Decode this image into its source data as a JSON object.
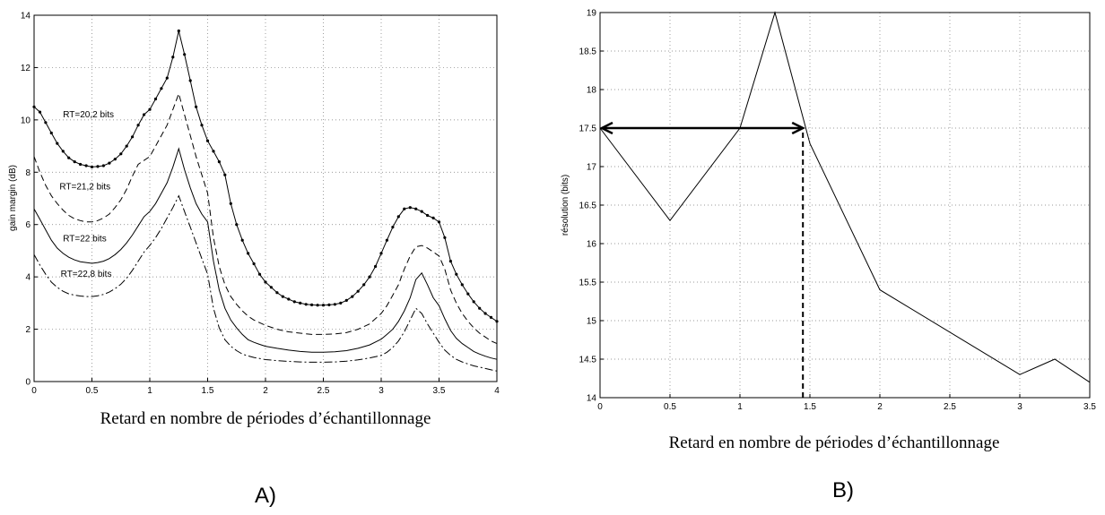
{
  "chart_data": [
    {
      "panel_label": "A)",
      "type": "line",
      "xlabel": "Retard en nombre de périodes d’échantillonnage",
      "ylabel": "gain margin (dB)",
      "xlim": [
        0,
        4
      ],
      "ylim": [
        0,
        14
      ],
      "xticks": [
        "0",
        "0.5",
        "1",
        "1.5",
        "2",
        "2.5",
        "3",
        "3.5",
        "4"
      ],
      "yticks": [
        "0",
        "2",
        "4",
        "6",
        "8",
        "10",
        "12",
        "14"
      ],
      "grid": true,
      "annotations": [
        {
          "text": "RT=20,2 bits",
          "x": 0.25,
          "y": 10.1
        },
        {
          "text": "RT=21,2 bits",
          "x": 0.22,
          "y": 7.35
        },
        {
          "text": "RT=22 bits",
          "x": 0.25,
          "y": 5.35
        },
        {
          "text": "RT=22,8 bits",
          "x": 0.23,
          "y": 4.0
        }
      ],
      "series": [
        {
          "name": "RT=20,2 bits",
          "style": "solid-dotted",
          "x": [
            0,
            0.05,
            0.1,
            0.15,
            0.2,
            0.25,
            0.3,
            0.35,
            0.4,
            0.45,
            0.5,
            0.55,
            0.6,
            0.65,
            0.7,
            0.75,
            0.8,
            0.85,
            0.9,
            0.95,
            1.0,
            1.05,
            1.1,
            1.15,
            1.2,
            1.25,
            1.3,
            1.35,
            1.4,
            1.45,
            1.5,
            1.55,
            1.6,
            1.65,
            1.7,
            1.75,
            1.8,
            1.85,
            1.9,
            1.95,
            2.0,
            2.05,
            2.1,
            2.15,
            2.2,
            2.25,
            2.3,
            2.35,
            2.4,
            2.45,
            2.5,
            2.55,
            2.6,
            2.65,
            2.7,
            2.75,
            2.8,
            2.85,
            2.9,
            2.95,
            3.0,
            3.05,
            3.1,
            3.15,
            3.2,
            3.25,
            3.3,
            3.35,
            3.4,
            3.45,
            3.5,
            3.55,
            3.6,
            3.65,
            3.7,
            3.75,
            3.8,
            3.85,
            3.9,
            3.95,
            4.0
          ],
          "values": [
            10.5,
            10.3,
            9.9,
            9.5,
            9.1,
            8.8,
            8.55,
            8.4,
            8.3,
            8.25,
            8.2,
            8.22,
            8.25,
            8.35,
            8.5,
            8.7,
            9.0,
            9.35,
            9.8,
            10.2,
            10.4,
            10.8,
            11.2,
            11.6,
            12.4,
            13.4,
            12.5,
            11.5,
            10.5,
            9.8,
            9.2,
            8.8,
            8.4,
            7.9,
            6.8,
            6.0,
            5.4,
            4.9,
            4.5,
            4.1,
            3.8,
            3.6,
            3.4,
            3.25,
            3.15,
            3.05,
            3.0,
            2.95,
            2.93,
            2.92,
            2.92,
            2.93,
            2.95,
            3.0,
            3.1,
            3.25,
            3.45,
            3.7,
            4.0,
            4.4,
            4.9,
            5.4,
            5.9,
            6.3,
            6.6,
            6.65,
            6.6,
            6.5,
            6.35,
            6.25,
            6.1,
            5.5,
            4.6,
            4.1,
            3.7,
            3.35,
            3.05,
            2.8,
            2.6,
            2.45,
            2.3
          ]
        },
        {
          "name": "RT=21,2 bits",
          "style": "dashed",
          "x": [
            0,
            0.05,
            0.1,
            0.15,
            0.2,
            0.25,
            0.3,
            0.35,
            0.4,
            0.45,
            0.5,
            0.55,
            0.6,
            0.65,
            0.7,
            0.75,
            0.8,
            0.85,
            0.9,
            0.95,
            1.0,
            1.05,
            1.1,
            1.15,
            1.2,
            1.25,
            1.3,
            1.35,
            1.4,
            1.45,
            1.5,
            1.55,
            1.6,
            1.65,
            1.7,
            1.75,
            1.8,
            1.85,
            1.9,
            1.95,
            2.0,
            2.1,
            2.2,
            2.3,
            2.4,
            2.5,
            2.6,
            2.7,
            2.8,
            2.9,
            3.0,
            3.05,
            3.1,
            3.15,
            3.2,
            3.25,
            3.3,
            3.35,
            3.4,
            3.45,
            3.5,
            3.55,
            3.6,
            3.65,
            3.7,
            3.75,
            3.8,
            3.85,
            3.9,
            3.95,
            4.0
          ],
          "values": [
            8.6,
            8.0,
            7.5,
            7.1,
            6.8,
            6.55,
            6.35,
            6.22,
            6.15,
            6.1,
            6.1,
            6.15,
            6.25,
            6.4,
            6.65,
            6.95,
            7.35,
            7.85,
            8.3,
            8.45,
            8.6,
            9.0,
            9.4,
            9.8,
            10.4,
            11.0,
            10.2,
            9.4,
            8.6,
            7.9,
            7.2,
            5.5,
            4.4,
            3.7,
            3.25,
            2.95,
            2.7,
            2.5,
            2.35,
            2.25,
            2.15,
            2.0,
            1.9,
            1.85,
            1.8,
            1.8,
            1.82,
            1.87,
            2.0,
            2.2,
            2.6,
            2.9,
            3.3,
            3.7,
            4.3,
            4.8,
            5.15,
            5.2,
            5.1,
            4.95,
            4.8,
            4.3,
            3.5,
            3.0,
            2.6,
            2.3,
            2.05,
            1.85,
            1.7,
            1.55,
            1.45
          ]
        },
        {
          "name": "RT=22 bits",
          "style": "solid",
          "x": [
            0,
            0.05,
            0.1,
            0.15,
            0.2,
            0.25,
            0.3,
            0.35,
            0.4,
            0.45,
            0.5,
            0.55,
            0.6,
            0.65,
            0.7,
            0.75,
            0.8,
            0.85,
            0.9,
            0.95,
            1.0,
            1.05,
            1.1,
            1.15,
            1.2,
            1.25,
            1.3,
            1.35,
            1.4,
            1.45,
            1.5,
            1.55,
            1.6,
            1.65,
            1.7,
            1.75,
            1.8,
            1.85,
            1.9,
            1.95,
            2.0,
            2.1,
            2.2,
            2.3,
            2.4,
            2.5,
            2.6,
            2.7,
            2.8,
            2.9,
            3.0,
            3.05,
            3.1,
            3.15,
            3.2,
            3.25,
            3.3,
            3.35,
            3.4,
            3.45,
            3.5,
            3.55,
            3.6,
            3.65,
            3.7,
            3.75,
            3.8,
            3.85,
            3.9,
            3.95,
            4.0
          ],
          "values": [
            6.6,
            6.2,
            5.8,
            5.4,
            5.1,
            4.9,
            4.75,
            4.65,
            4.58,
            4.55,
            4.52,
            4.55,
            4.6,
            4.7,
            4.85,
            5.05,
            5.3,
            5.6,
            5.95,
            6.3,
            6.5,
            6.8,
            7.2,
            7.6,
            8.2,
            8.9,
            8.1,
            7.4,
            6.8,
            6.4,
            6.1,
            4.6,
            3.5,
            2.8,
            2.35,
            2.05,
            1.8,
            1.6,
            1.5,
            1.42,
            1.35,
            1.27,
            1.2,
            1.15,
            1.12,
            1.12,
            1.14,
            1.18,
            1.27,
            1.4,
            1.62,
            1.8,
            2.0,
            2.3,
            2.7,
            3.2,
            3.9,
            4.15,
            3.7,
            3.2,
            2.9,
            2.4,
            1.95,
            1.65,
            1.45,
            1.3,
            1.15,
            1.05,
            0.97,
            0.9,
            0.85
          ]
        },
        {
          "name": "RT=22,8 bits",
          "style": "dash-dot",
          "x": [
            0,
            0.05,
            0.1,
            0.15,
            0.2,
            0.25,
            0.3,
            0.35,
            0.4,
            0.45,
            0.5,
            0.55,
            0.6,
            0.65,
            0.7,
            0.75,
            0.8,
            0.85,
            0.9,
            0.95,
            1.0,
            1.05,
            1.1,
            1.15,
            1.2,
            1.25,
            1.3,
            1.35,
            1.4,
            1.45,
            1.5,
            1.55,
            1.6,
            1.65,
            1.7,
            1.75,
            1.8,
            1.85,
            1.9,
            1.95,
            2.0,
            2.1,
            2.2,
            2.3,
            2.4,
            2.5,
            2.6,
            2.7,
            2.8,
            2.9,
            3.0,
            3.05,
            3.1,
            3.15,
            3.2,
            3.25,
            3.3,
            3.35,
            3.4,
            3.45,
            3.5,
            3.55,
            3.6,
            3.65,
            3.7,
            3.75,
            3.8,
            3.85,
            3.9,
            3.95,
            4.0
          ],
          "values": [
            4.85,
            4.45,
            4.1,
            3.8,
            3.6,
            3.45,
            3.35,
            3.3,
            3.27,
            3.25,
            3.25,
            3.28,
            3.33,
            3.42,
            3.55,
            3.72,
            3.95,
            4.25,
            4.6,
            4.95,
            5.2,
            5.5,
            5.85,
            6.25,
            6.65,
            7.1,
            6.5,
            5.9,
            5.3,
            4.7,
            4.1,
            2.8,
            2.05,
            1.6,
            1.35,
            1.18,
            1.05,
            0.98,
            0.92,
            0.88,
            0.84,
            0.8,
            0.77,
            0.75,
            0.74,
            0.74,
            0.75,
            0.78,
            0.83,
            0.9,
            1.0,
            1.12,
            1.3,
            1.55,
            1.9,
            2.35,
            2.8,
            2.6,
            2.2,
            1.85,
            1.5,
            1.2,
            1.0,
            0.85,
            0.75,
            0.67,
            0.6,
            0.55,
            0.5,
            0.45,
            0.4
          ]
        }
      ]
    },
    {
      "panel_label": "B)",
      "type": "line",
      "xlabel": "Retard en nombre de périodes d’échantillonnage",
      "ylabel": "résolution (bits)",
      "xlim": [
        0,
        3.5
      ],
      "ylim": [
        14,
        19
      ],
      "xticks": [
        "0",
        "0.5",
        "1",
        "1.5",
        "2",
        "2.5",
        "3",
        "3.5"
      ],
      "yticks": [
        "14",
        "14.5",
        "15",
        "15.5",
        "16",
        "16.5",
        "17",
        "17.5",
        "18",
        "18.5",
        "19"
      ],
      "grid": true,
      "series": [
        {
          "style": "solid",
          "x": [
            0,
            0.5,
            1.0,
            1.25,
            1.5,
            2.0,
            3.0,
            3.25,
            3.5
          ],
          "values": [
            17.5,
            16.3,
            17.5,
            19.0,
            17.3,
            15.4,
            14.3,
            14.5,
            14.2
          ]
        }
      ],
      "arrow": {
        "x_from": 0,
        "x_to": 1.45,
        "y": 17.5
      },
      "dashed_marker": {
        "x": 1.45,
        "y_from": 14,
        "y_to": 17.5
      }
    }
  ]
}
